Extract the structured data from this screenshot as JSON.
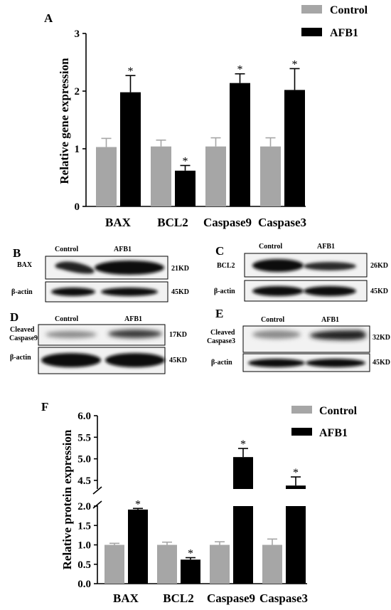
{
  "colors": {
    "control": "#a6a6a6",
    "afb1": "#000000"
  },
  "chart_data": [
    {
      "panel": "A",
      "type": "bar",
      "ylabel": "Relative gene expression",
      "ylim": [
        0,
        3
      ],
      "yticks": [
        0,
        1,
        2,
        3
      ],
      "categories": [
        "BAX",
        "BCL2",
        "Caspase9",
        "Caspase3"
      ],
      "series": [
        {
          "name": "Control",
          "values": [
            1.03,
            1.04,
            1.04,
            1.04
          ],
          "errors": [
            0.15,
            0.11,
            0.15,
            0.15
          ]
        },
        {
          "name": "AFB1",
          "values": [
            1.98,
            0.62,
            2.14,
            2.02
          ],
          "errors": [
            0.29,
            0.09,
            0.16,
            0.37
          ]
        }
      ],
      "significance": [
        "*",
        "*",
        "*",
        "*"
      ],
      "legend": "top-right"
    },
    {
      "panel": "F",
      "type": "bar",
      "ylabel": "Relative protein expression",
      "axis_break": [
        2.0,
        4.3
      ],
      "ylim": [
        0,
        6.0
      ],
      "yticks_lower": [
        "0.0",
        "0.5",
        "1.0",
        "1.5",
        "2.0"
      ],
      "yticks_upper": [
        "4.5",
        "5.0",
        "5.5",
        "6.0"
      ],
      "categories": [
        "BAX",
        "BCL2",
        "Caspase9",
        "Caspase3"
      ],
      "series": [
        {
          "name": "Control",
          "values": [
            1.0,
            1.0,
            1.0,
            1.0
          ],
          "errors": [
            0.04,
            0.07,
            0.08,
            0.15
          ]
        },
        {
          "name": "AFB1",
          "values": [
            1.91,
            0.62,
            5.04,
            4.38
          ],
          "errors": [
            0.03,
            0.05,
            0.2,
            0.2
          ]
        }
      ],
      "significance": [
        "*",
        "*",
        "*",
        "*"
      ],
      "legend": "top-right"
    }
  ],
  "blots": [
    {
      "panel": "B",
      "header": [
        "Control",
        "AFB1"
      ],
      "rows": [
        {
          "label": "BAX",
          "size": "21KD"
        },
        {
          "label": "β-actin",
          "size": "45KD"
        }
      ]
    },
    {
      "panel": "C",
      "header": [
        "Control",
        "AFB1"
      ],
      "rows": [
        {
          "label": "BCL2",
          "size": "26KD"
        },
        {
          "label": "β-actin",
          "size": "45KD"
        }
      ]
    },
    {
      "panel": "D",
      "header": [
        "Control",
        "AFB1"
      ],
      "rows": [
        {
          "label": "Cleaved Caspase9",
          "size": "17KD"
        },
        {
          "label": "β-actin",
          "size": "45KD"
        }
      ]
    },
    {
      "panel": "E",
      "header": [
        "Control",
        "AFB1"
      ],
      "rows": [
        {
          "label": "Cleaved Caspase3",
          "size": "32KD"
        },
        {
          "label": "β-actin",
          "size": "45KD"
        }
      ]
    }
  ]
}
